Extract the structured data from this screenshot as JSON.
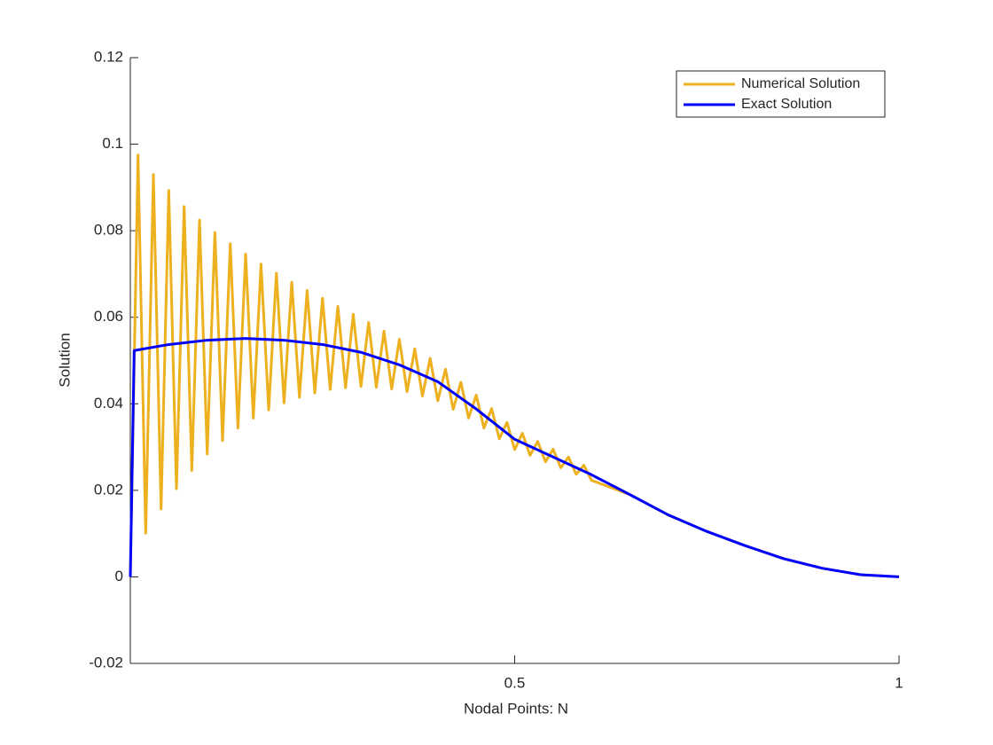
{
  "chart_data": {
    "type": "line",
    "xlabel": "Nodal Points: N",
    "ylabel": "Solution",
    "xlim": [
      0,
      1
    ],
    "xticks": [
      0.5,
      1
    ],
    "ylim": [
      -0.02,
      0.12
    ],
    "yticks": [
      -0.02,
      0,
      0.02,
      0.04,
      0.06,
      0.08,
      0.1,
      0.12
    ],
    "grid": false,
    "legend": "northeast",
    "series": [
      {
        "name": "Numerical Solution",
        "color": "#EDB120",
        "x": [
          0,
          0.01,
          0.02,
          0.03,
          0.04,
          0.05,
          0.06,
          0.07,
          0.08,
          0.09,
          0.1,
          0.11,
          0.12,
          0.13,
          0.14,
          0.15,
          0.16,
          0.17,
          0.18,
          0.19,
          0.2,
          0.21,
          0.22,
          0.23,
          0.24,
          0.25,
          0.26,
          0.27,
          0.28,
          0.29,
          0.3,
          0.31,
          0.32,
          0.33,
          0.34,
          0.35,
          0.36,
          0.37,
          0.38,
          0.39,
          0.4,
          0.41,
          0.42,
          0.43,
          0.44,
          0.45,
          0.46,
          0.47,
          0.48,
          0.49,
          0.5,
          0.51,
          0.52,
          0.53,
          0.54,
          0.55,
          0.56,
          0.57,
          0.58,
          0.59,
          0.6,
          0.65,
          0.7,
          0.75,
          0.8,
          0.85,
          0.9,
          0.95,
          1
        ],
        "values": [
          0,
          0.0975,
          0.0101,
          0.093,
          0.0157,
          0.0893,
          0.0204,
          0.0856,
          0.0246,
          0.0825,
          0.0284,
          0.0796,
          0.0315,
          0.077,
          0.0344,
          0.0746,
          0.0367,
          0.0723,
          0.0386,
          0.0702,
          0.0402,
          0.0681,
          0.0415,
          0.0662,
          0.0425,
          0.0644,
          0.0433,
          0.0625,
          0.0437,
          0.0607,
          0.044,
          0.0588,
          0.0438,
          0.0568,
          0.0434,
          0.0549,
          0.0428,
          0.0527,
          0.0418,
          0.0505,
          0.0407,
          0.048,
          0.0387,
          0.045,
          0.0367,
          0.042,
          0.0344,
          0.0389,
          0.0319,
          0.0357,
          0.0294,
          0.0332,
          0.0281,
          0.0313,
          0.0266,
          0.0295,
          0.0252,
          0.0277,
          0.0237,
          0.0258,
          0.0223,
          0.019,
          0.0143,
          0.0105,
          0.0072,
          0.0042,
          0.002,
          0.0005,
          0
        ]
      },
      {
        "name": "Exact Solution",
        "color": "#0000FF",
        "x": [
          0,
          0.005,
          0.05,
          0.1,
          0.15,
          0.2,
          0.25,
          0.3,
          0.35,
          0.4,
          0.45,
          0.5,
          0.55,
          0.6,
          0.65,
          0.7,
          0.75,
          0.8,
          0.85,
          0.9,
          0.95,
          1
        ],
        "values": [
          0,
          0.0523,
          0.0537,
          0.0547,
          0.0551,
          0.0547,
          0.0537,
          0.0519,
          0.049,
          0.0451,
          0.0388,
          0.0318,
          0.0277,
          0.0236,
          0.019,
          0.0143,
          0.0105,
          0.0072,
          0.0042,
          0.002,
          0.0005,
          0
        ]
      }
    ]
  }
}
